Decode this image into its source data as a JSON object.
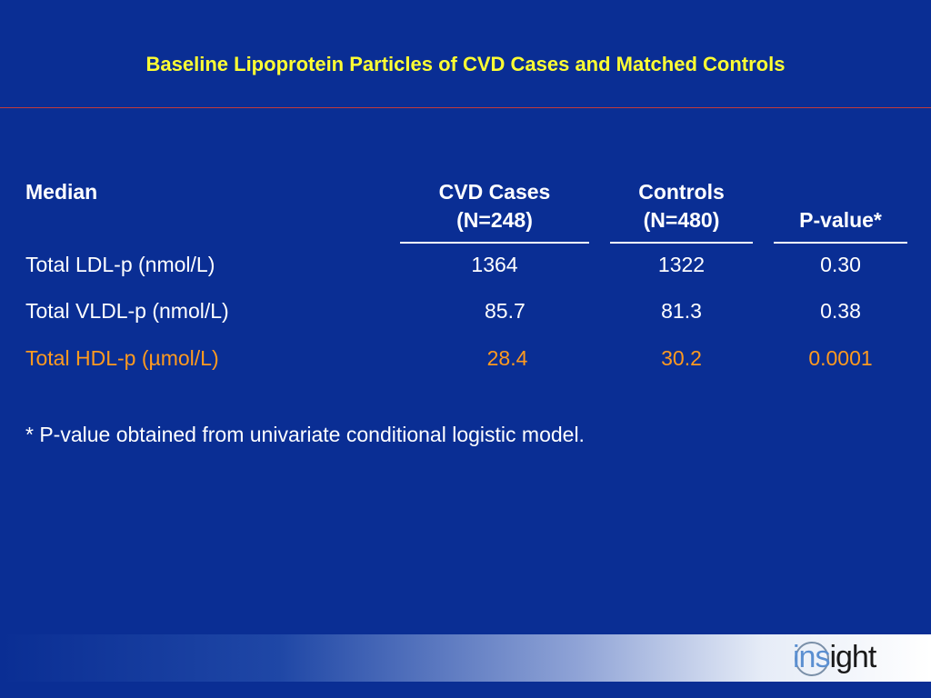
{
  "slide": {
    "title": "Baseline Lipoprotein Particles of CVD Cases and Matched Controls",
    "table": {
      "headers": {
        "median": "Median",
        "cases_line1": "CVD Cases",
        "cases_line2": "(N=248)",
        "controls_line1": "Controls",
        "controls_line2": "(N=480)",
        "pvalue": "P-value*"
      },
      "rows": [
        {
          "label": "Total LDL-p (nmol/L)",
          "cases": "1364",
          "controls": "1322",
          "pvalue": "0.30",
          "highlight": false
        },
        {
          "label": "Total VLDL-p (nmol/L)",
          "cases": "85.7",
          "controls": "81.3",
          "pvalue": "0.38",
          "highlight": false
        },
        {
          "label": "Total HDL-p (µmol/L)",
          "cases": "28.4",
          "controls": "30.2",
          "pvalue": "0.0001",
          "highlight": true
        }
      ]
    },
    "footnote": "* P-value obtained from univariate conditional logistic model.",
    "logo": {
      "part1": "ins",
      "part2": "ight"
    }
  },
  "colors": {
    "background": "#0a2e94",
    "title": "#ffff33",
    "text": "#ffffff",
    "highlight": "#ff9a1f",
    "title_rule": "#c23b3b"
  }
}
